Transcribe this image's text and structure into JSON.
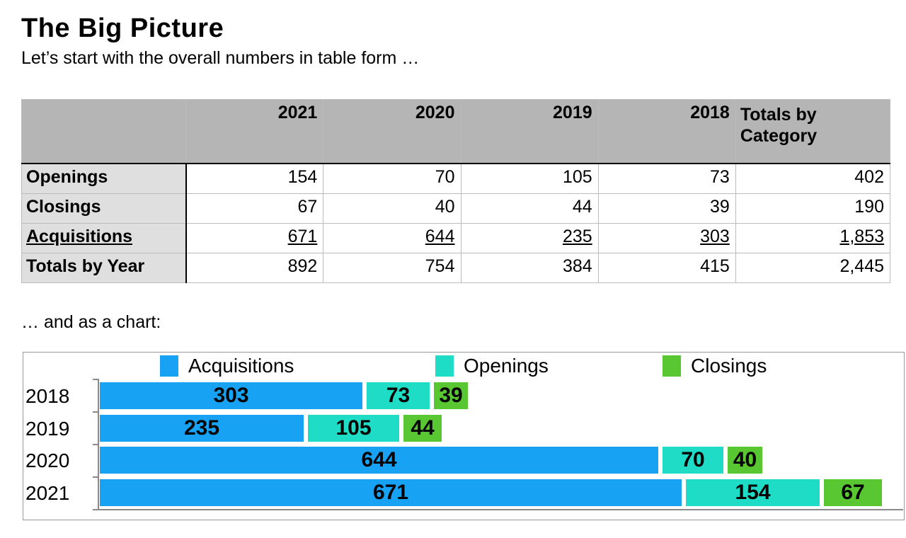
{
  "page": {
    "title": "The Big Picture",
    "subtitle": "Let’s start with the overall numbers in table form …",
    "chart_intro": "… and as a chart:"
  },
  "table": {
    "columns": [
      "",
      "2021",
      "2020",
      "2019",
      "2018",
      "Totals by Category"
    ],
    "rows": [
      {
        "label": "Openings",
        "values": [
          "154",
          "70",
          "105",
          "73",
          "402"
        ]
      },
      {
        "label": "Closings",
        "values": [
          "67",
          "40",
          "44",
          "39",
          "190"
        ]
      },
      {
        "label": "Acquisitions",
        "values": [
          "671",
          "644",
          "235",
          "303",
          "1,853"
        ]
      },
      {
        "label": "Totals by Year",
        "values": [
          "892",
          "754",
          "384",
          "415",
          "2,445"
        ]
      }
    ]
  },
  "chart_data": {
    "type": "bar",
    "orientation": "horizontal",
    "stacked": true,
    "grid": false,
    "legend_position": "top",
    "categories": [
      "2018",
      "2019",
      "2020",
      "2021"
    ],
    "series": [
      {
        "name": "Acquisitions",
        "color": "#17a2f3",
        "values": [
          303,
          235,
          644,
          671
        ]
      },
      {
        "name": "Openings",
        "color": "#1edcc6",
        "values": [
          73,
          105,
          70,
          154
        ]
      },
      {
        "name": "Closings",
        "color": "#58c732",
        "values": [
          39,
          44,
          40,
          67
        ]
      }
    ],
    "xlim": [
      0,
      900
    ]
  },
  "colors": {
    "header_bg": "#b5b5b5",
    "label_bg": "#dfdfdf",
    "axis": "#8a8a8a",
    "acquisitions": "#17a2f3",
    "openings": "#1edcc6",
    "closings": "#58c732"
  }
}
